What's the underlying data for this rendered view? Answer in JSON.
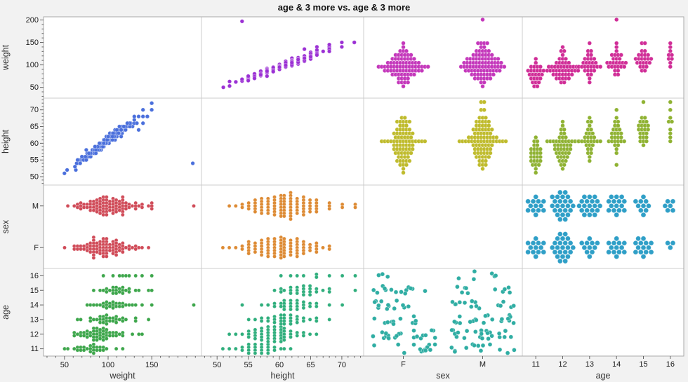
{
  "title": "age & 3 more vs. age & 3 more",
  "fig": {
    "bg": "#f2f2f2",
    "panel": "#ffffff",
    "grid": "#cccccc",
    "border": "#a9a9a9",
    "tick": "#666666",
    "tick_label": "#1a1a1a",
    "axis_title": "#333333"
  },
  "chart_data": {
    "type": "scatter",
    "subtype": "scatterplot-matrix",
    "title": "age & 3 more vs. age & 3 more",
    "variables": [
      "weight",
      "height",
      "sex",
      "age"
    ],
    "axes": {
      "weight": {
        "range": [
          26,
          207
        ],
        "xticks": [
          50,
          100,
          150
        ],
        "yticks": [
          50,
          100,
          150,
          200
        ],
        "minor_step": 10
      },
      "height": {
        "range": [
          47.5,
          73.5
        ],
        "xticks": [
          50,
          55,
          60,
          65,
          70
        ],
        "yticks": [
          50,
          55,
          60,
          65,
          70
        ],
        "minor_step": 1
      },
      "sex": {
        "categories": [
          "F",
          "M"
        ]
      },
      "age": {
        "categories": [
          11,
          12,
          13,
          14,
          15,
          16
        ]
      }
    },
    "cells": [
      {
        "row": "weight",
        "col": "height",
        "type": "scatter",
        "color": "#9b30d4"
      },
      {
        "row": "weight",
        "col": "sex",
        "type": "dot-stack-h",
        "color": "#c437bb"
      },
      {
        "row": "weight",
        "col": "age",
        "type": "dot-stack-h",
        "color": "#d02d97"
      },
      {
        "row": "height",
        "col": "weight",
        "type": "scatter",
        "color": "#4a6fdc"
      },
      {
        "row": "height",
        "col": "sex",
        "type": "dot-stack-h",
        "color": "#bfbb2c"
      },
      {
        "row": "height",
        "col": "age",
        "type": "dot-stack-h",
        "color": "#8fb232"
      },
      {
        "row": "sex",
        "col": "weight",
        "type": "dot-stack-v",
        "color": "#d04b58"
      },
      {
        "row": "sex",
        "col": "height",
        "type": "dot-stack-v",
        "color": "#dd8a33"
      },
      {
        "row": "sex",
        "col": "age",
        "type": "hex-pack",
        "color": "#2f9fc7"
      },
      {
        "row": "age",
        "col": "weight",
        "type": "dot-stack-v",
        "color": "#3da64b"
      },
      {
        "row": "age",
        "col": "height",
        "type": "dot-stack-v",
        "color": "#2fae7c"
      },
      {
        "row": "age",
        "col": "sex",
        "type": "jitter",
        "color": "#2fada3"
      }
    ],
    "columns": [
      "age",
      "sex",
      "height",
      "weight"
    ],
    "records": [
      [
        11,
        "F",
        51,
        50
      ],
      [
        11,
        "F",
        53,
        62
      ],
      [
        11,
        "F",
        54,
        65
      ],
      [
        11,
        "F",
        55,
        70
      ],
      [
        11,
        "F",
        55,
        74
      ],
      [
        11,
        "F",
        56,
        78
      ],
      [
        11,
        "F",
        56,
        80
      ],
      [
        11,
        "F",
        57,
        84
      ],
      [
        11,
        "F",
        57,
        85
      ],
      [
        11,
        "F",
        58,
        88
      ],
      [
        11,
        "F",
        58,
        92
      ],
      [
        11,
        "F",
        59,
        95
      ],
      [
        11,
        "F",
        61,
        108
      ],
      [
        11,
        "M",
        52,
        53
      ],
      [
        11,
        "M",
        54,
        64
      ],
      [
        11,
        "M",
        55,
        68
      ],
      [
        11,
        "M",
        55,
        72
      ],
      [
        11,
        "M",
        56,
        75
      ],
      [
        11,
        "M",
        56,
        79
      ],
      [
        11,
        "M",
        57,
        82
      ],
      [
        11,
        "M",
        57,
        85
      ],
      [
        11,
        "M",
        58,
        87
      ],
      [
        11,
        "M",
        58,
        90
      ],
      [
        11,
        "M",
        59,
        94
      ],
      [
        11,
        "M",
        60,
        100
      ],
      [
        11,
        "M",
        62,
        115
      ],
      [
        12,
        "F",
        52,
        63
      ],
      [
        12,
        "F",
        54,
        68
      ],
      [
        12,
        "F",
        55,
        72
      ],
      [
        12,
        "F",
        55,
        75
      ],
      [
        12,
        "F",
        56,
        77
      ],
      [
        12,
        "F",
        56,
        80
      ],
      [
        12,
        "F",
        57,
        82
      ],
      [
        12,
        "F",
        57,
        84
      ],
      [
        12,
        "F",
        57,
        86
      ],
      [
        12,
        "F",
        58,
        84
      ],
      [
        12,
        "F",
        58,
        88
      ],
      [
        12,
        "F",
        58,
        90
      ],
      [
        12,
        "F",
        59,
        87
      ],
      [
        12,
        "F",
        59,
        92
      ],
      [
        12,
        "F",
        59,
        95
      ],
      [
        12,
        "F",
        60,
        93
      ],
      [
        12,
        "F",
        60,
        98
      ],
      [
        12,
        "F",
        60,
        101
      ],
      [
        12,
        "F",
        61,
        99
      ],
      [
        12,
        "F",
        61,
        104
      ],
      [
        12,
        "F",
        62,
        110
      ],
      [
        12,
        "F",
        63,
        116
      ],
      [
        12,
        "F",
        64,
        135
      ],
      [
        12,
        "M",
        53,
        62
      ],
      [
        12,
        "M",
        55,
        66
      ],
      [
        12,
        "M",
        56,
        70
      ],
      [
        12,
        "M",
        56,
        74
      ],
      [
        12,
        "M",
        57,
        76
      ],
      [
        12,
        "M",
        57,
        80
      ],
      [
        12,
        "M",
        58,
        82
      ],
      [
        12,
        "M",
        58,
        85
      ],
      [
        12,
        "M",
        58,
        88
      ],
      [
        12,
        "M",
        59,
        86
      ],
      [
        12,
        "M",
        59,
        90
      ],
      [
        12,
        "M",
        59,
        93
      ],
      [
        12,
        "M",
        60,
        91
      ],
      [
        12,
        "M",
        60,
        95
      ],
      [
        12,
        "M",
        60,
        98
      ],
      [
        12,
        "M",
        61,
        96
      ],
      [
        12,
        "M",
        61,
        100
      ],
      [
        12,
        "M",
        61,
        104
      ],
      [
        12,
        "M",
        62,
        102
      ],
      [
        12,
        "M",
        62,
        108
      ],
      [
        12,
        "M",
        63,
        112
      ],
      [
        12,
        "M",
        64,
        118
      ],
      [
        12,
        "M",
        65,
        128
      ],
      [
        12,
        "M",
        66,
        140
      ],
      [
        13,
        "F",
        55,
        65
      ],
      [
        13,
        "F",
        57,
        78
      ],
      [
        13,
        "F",
        58,
        84
      ],
      [
        13,
        "F",
        59,
        90
      ],
      [
        13,
        "F",
        60,
        94
      ],
      [
        13,
        "F",
        60,
        98
      ],
      [
        13,
        "F",
        61,
        100
      ],
      [
        13,
        "F",
        62,
        105
      ],
      [
        13,
        "F",
        63,
        110
      ],
      [
        13,
        "F",
        64,
        118
      ],
      [
        13,
        "F",
        66,
        130
      ],
      [
        13,
        "M",
        56,
        70
      ],
      [
        13,
        "M",
        57,
        80
      ],
      [
        13,
        "M",
        58,
        86
      ],
      [
        13,
        "M",
        59,
        90
      ],
      [
        13,
        "M",
        59,
        94
      ],
      [
        13,
        "M",
        60,
        92
      ],
      [
        13,
        "M",
        60,
        97
      ],
      [
        13,
        "M",
        61,
        95
      ],
      [
        13,
        "M",
        61,
        100
      ],
      [
        13,
        "M",
        61,
        103
      ],
      [
        13,
        "M",
        62,
        101
      ],
      [
        13,
        "M",
        62,
        106
      ],
      [
        13,
        "M",
        62,
        110
      ],
      [
        13,
        "M",
        63,
        108
      ],
      [
        13,
        "M",
        63,
        113
      ],
      [
        13,
        "M",
        64,
        116
      ],
      [
        13,
        "M",
        65,
        122
      ],
      [
        13,
        "M",
        66,
        130
      ],
      [
        13,
        "M",
        68,
        145
      ],
      [
        14,
        "F",
        58,
        75
      ],
      [
        14,
        "F",
        59,
        85
      ],
      [
        14,
        "F",
        60,
        92
      ],
      [
        14,
        "F",
        61,
        96
      ],
      [
        14,
        "F",
        61,
        100
      ],
      [
        14,
        "F",
        62,
        98
      ],
      [
        14,
        "F",
        62,
        104
      ],
      [
        14,
        "F",
        63,
        102
      ],
      [
        14,
        "F",
        63,
        108
      ],
      [
        14,
        "F",
        64,
        112
      ],
      [
        14,
        "F",
        65,
        118
      ],
      [
        14,
        "F",
        66,
        126
      ],
      [
        14,
        "F",
        68,
        140
      ],
      [
        14,
        "M",
        54,
        197
      ],
      [
        14,
        "M",
        57,
        78
      ],
      [
        14,
        "M",
        59,
        88
      ],
      [
        14,
        "M",
        60,
        95
      ],
      [
        14,
        "M",
        61,
        100
      ],
      [
        14,
        "M",
        61,
        105
      ],
      [
        14,
        "M",
        62,
        103
      ],
      [
        14,
        "M",
        62,
        108
      ],
      [
        14,
        "M",
        63,
        107
      ],
      [
        14,
        "M",
        63,
        112
      ],
      [
        14,
        "M",
        64,
        115
      ],
      [
        14,
        "M",
        64,
        120
      ],
      [
        14,
        "M",
        65,
        125
      ],
      [
        14,
        "M",
        66,
        133
      ],
      [
        14,
        "M",
        70,
        150
      ],
      [
        15,
        "F",
        59,
        85
      ],
      [
        15,
        "F",
        60,
        94
      ],
      [
        15,
        "F",
        61,
        99
      ],
      [
        15,
        "F",
        62,
        103
      ],
      [
        15,
        "F",
        62,
        107
      ],
      [
        15,
        "F",
        63,
        105
      ],
      [
        15,
        "F",
        63,
        110
      ],
      [
        15,
        "F",
        64,
        108
      ],
      [
        15,
        "F",
        64,
        113
      ],
      [
        15,
        "F",
        65,
        116
      ],
      [
        15,
        "F",
        65,
        120
      ],
      [
        15,
        "F",
        66,
        124
      ],
      [
        15,
        "F",
        67,
        130
      ],
      [
        15,
        "F",
        68,
        145
      ],
      [
        15,
        "M",
        60,
        90
      ],
      [
        15,
        "M",
        62,
        100
      ],
      [
        15,
        "M",
        63,
        106
      ],
      [
        15,
        "M",
        64,
        110
      ],
      [
        15,
        "M",
        64,
        115
      ],
      [
        15,
        "M",
        65,
        113
      ],
      [
        15,
        "M",
        65,
        118
      ],
      [
        15,
        "M",
        66,
        124
      ],
      [
        15,
        "M",
        68,
        135
      ],
      [
        15,
        "M",
        72,
        150
      ],
      [
        16,
        "F",
        60,
        95
      ],
      [
        16,
        "F",
        63,
        112
      ],
      [
        16,
        "F",
        66,
        125
      ],
      [
        16,
        "M",
        62,
        105
      ],
      [
        16,
        "M",
        64,
        115
      ],
      [
        16,
        "M",
        66,
        122
      ],
      [
        16,
        "M",
        68,
        130
      ],
      [
        16,
        "M",
        70,
        140
      ],
      [
        16,
        "M",
        72,
        150
      ]
    ]
  }
}
